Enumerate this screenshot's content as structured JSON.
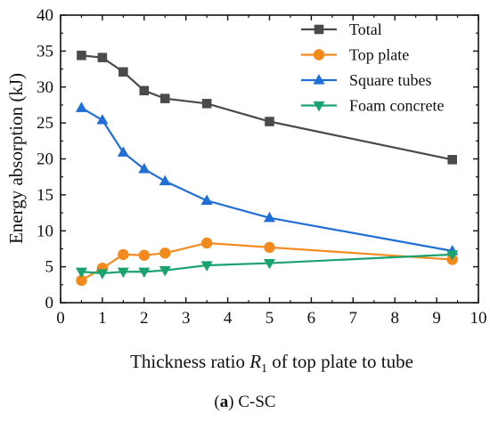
{
  "chart_data": {
    "type": "line",
    "xlabel": {
      "pre": "Thickness ratio ",
      "var": "R",
      "sub": "1",
      "post": " of top plate to tube"
    },
    "ylabel": "Energy absorption (kJ)",
    "xlim": [
      0,
      10
    ],
    "ylim": [
      0,
      40
    ],
    "xticks": [
      0,
      1,
      2,
      3,
      4,
      5,
      6,
      7,
      8,
      9,
      10
    ],
    "yticks": [
      0,
      5,
      10,
      15,
      20,
      25,
      30,
      35,
      40
    ],
    "grid": false,
    "legend_position": "top-right",
    "x": [
      0.5,
      1,
      1.5,
      2,
      2.5,
      3.5,
      5,
      9.375
    ],
    "series": [
      {
        "name": "Total",
        "color": "#4a4a4a",
        "marker": "square",
        "values": [
          34.4,
          34.1,
          32.1,
          29.5,
          28.4,
          27.7,
          25.2,
          19.9
        ]
      },
      {
        "name": "Top plate",
        "color": "#f28a1e",
        "marker": "circle",
        "values": [
          3.1,
          4.8,
          6.7,
          6.6,
          6.9,
          8.3,
          7.7,
          6.0
        ]
      },
      {
        "name": "Square tubes",
        "color": "#1f6fd6",
        "marker": "triangle-up",
        "values": [
          27.1,
          25.4,
          20.9,
          18.6,
          16.9,
          14.2,
          11.8,
          7.2
        ]
      },
      {
        "name": "Foam concrete",
        "color": "#1aa36f",
        "marker": "triangle-down",
        "values": [
          4.3,
          4.1,
          4.3,
          4.3,
          4.5,
          5.2,
          5.5,
          6.7
        ]
      }
    ]
  },
  "caption": {
    "label": "a",
    "text": " C-SC"
  }
}
